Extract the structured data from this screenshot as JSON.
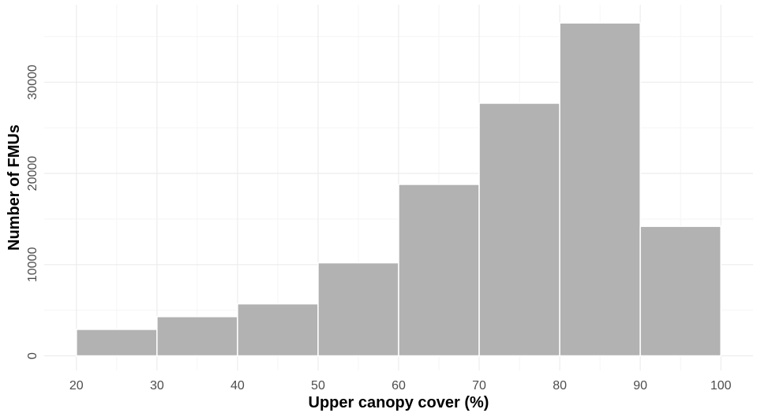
{
  "chart_data": {
    "type": "bar",
    "title": "",
    "xlabel": "Upper canopy cover (%)",
    "ylabel": "Number of FMUs",
    "bin_edges": [
      20,
      30,
      40,
      50,
      60,
      70,
      80,
      90,
      100
    ],
    "values": [
      2900,
      4300,
      5700,
      10200,
      18800,
      27700,
      36500,
      14200
    ],
    "xlim": [
      16,
      104
    ],
    "ylim": [
      -1600,
      38500
    ],
    "x_ticks": [
      20,
      30,
      40,
      50,
      60,
      70,
      80,
      90,
      100
    ],
    "y_ticks": [
      0,
      10000,
      20000,
      30000
    ],
    "bar_color": "#b2b2b2",
    "grid": true
  }
}
